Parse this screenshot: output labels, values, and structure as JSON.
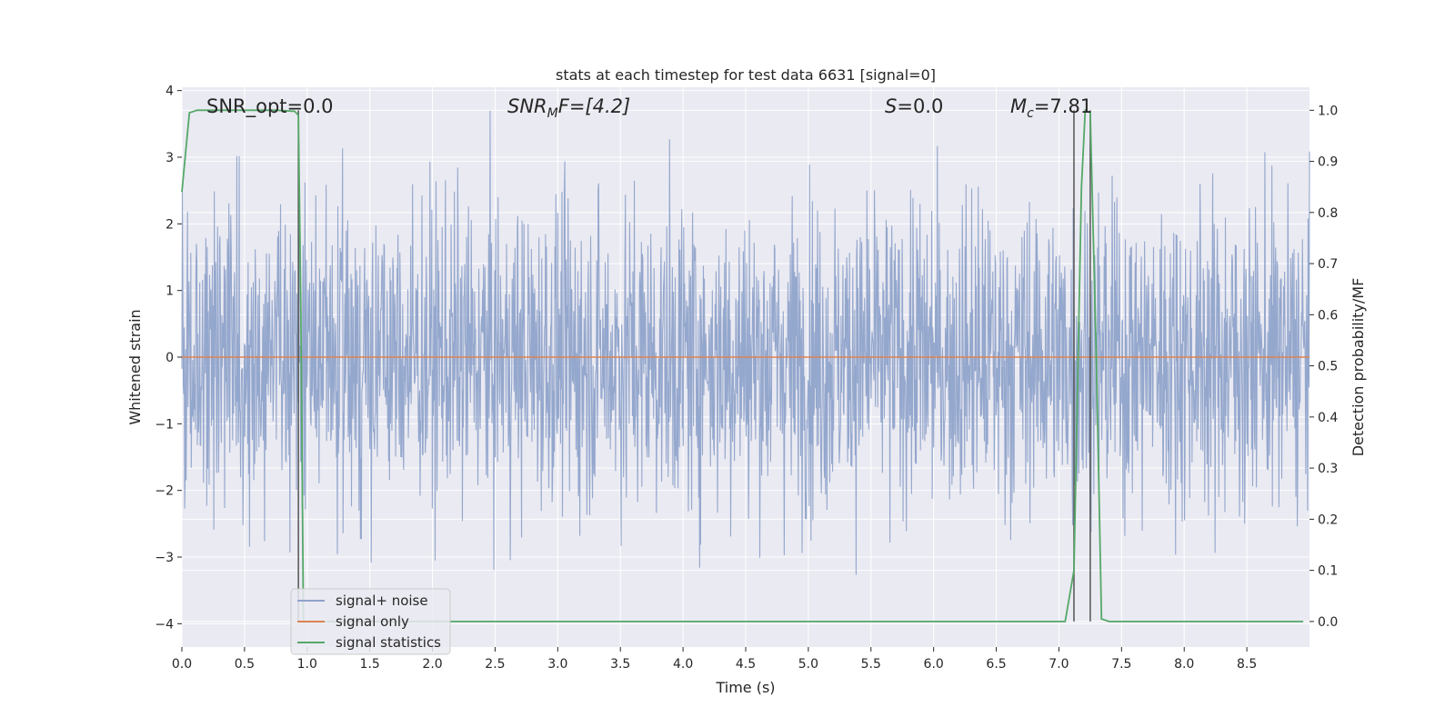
{
  "chart_data": {
    "type": "line",
    "title": "stats at each timestep for test data 6631 [signal=0]",
    "xlabel": "Time (s)",
    "ylabel_left": "Whitened strain",
    "ylabel_right": "Detection probability/MF",
    "xlim": [
      0.0,
      9.0
    ],
    "ylim_left": [
      -4.35,
      4.05
    ],
    "ylim_right": [
      -0.05,
      1.045
    ],
    "x_ticks": [
      0.0,
      0.5,
      1.0,
      1.5,
      2.0,
      2.5,
      3.0,
      3.5,
      4.0,
      4.5,
      5.0,
      5.5,
      6.0,
      6.5,
      7.0,
      7.5,
      8.0,
      8.5
    ],
    "x_tick_labels": [
      "0.0",
      "0.5",
      "1.0",
      "1.5",
      "2.0",
      "2.5",
      "3.0",
      "3.5",
      "4.0",
      "4.5",
      "5.0",
      "5.5",
      "6.0",
      "6.5",
      "7.0",
      "7.5",
      "8.0",
      "8.5"
    ],
    "y_left_ticks": [
      4,
      3,
      2,
      1,
      0,
      -1,
      -2,
      -3,
      -4
    ],
    "y_left_tick_labels": [
      "4",
      "3",
      "2",
      "1",
      "0",
      "−1",
      "−2",
      "−3",
      "−4"
    ],
    "y_right_ticks": [
      1.0,
      0.9,
      0.8,
      0.7,
      0.6,
      0.5,
      0.4,
      0.3,
      0.2,
      0.1,
      0.0
    ],
    "y_right_tick_labels": [
      "1.0",
      "0.9",
      "0.8",
      "0.7",
      "0.6",
      "0.5",
      "0.4",
      "0.3",
      "0.2",
      "0.1",
      "0.0"
    ],
    "annotations": {
      "snr_opt": "SNR_opt=0.0",
      "snr_mf_italic": "SNR",
      "snr_mf_sub": "M",
      "snr_mf_rest": "F=[4.2]",
      "s_italic": "S",
      "s_rest": "=0.0",
      "mc_italic": "M",
      "mc_sub": "c",
      "mc_rest": "=7.81"
    },
    "legend": {
      "placement": "lower-left",
      "entries": [
        "signal+ noise",
        "signal only",
        "signal statistics"
      ]
    },
    "grid": true,
    "colors": {
      "noise": "#8fa3ca",
      "signal": "#dd8452",
      "stats": "#55a868",
      "vlines": "#555555",
      "background": "#eaeaf2",
      "grid": "#ffffff"
    },
    "series": [
      {
        "name": "signal+ noise",
        "axis": "left",
        "kind": "noise",
        "x_range": [
          0.0,
          9.0
        ],
        "sample_rate": 2048,
        "std": 1.0,
        "typical_upper_envelope": 2.5,
        "typical_lower_envelope": -2.5
      },
      {
        "name": "signal only",
        "axis": "left",
        "x": [
          0.0,
          9.0
        ],
        "y": [
          0.0,
          0.0
        ]
      },
      {
        "name": "signal statistics",
        "axis": "right",
        "x": [
          0.0,
          0.06,
          0.12,
          0.25,
          0.5,
          0.75,
          0.9,
          0.93,
          0.95,
          0.97,
          1.0,
          1.5,
          2.0,
          3.0,
          4.0,
          5.0,
          6.0,
          6.5,
          7.0,
          7.05,
          7.12,
          7.18,
          7.21,
          7.25,
          7.3,
          7.34,
          7.4,
          7.6,
          8.0,
          8.5,
          8.95
        ],
        "y": [
          0.84,
          0.995,
          1.0,
          1.0,
          1.0,
          1.0,
          0.998,
          0.99,
          0.6,
          0.0,
          0.0,
          0.0,
          0.0,
          0.0,
          0.0,
          0.0,
          0.0,
          0.0,
          0.0,
          0.0,
          0.1,
          0.85,
          1.0,
          0.995,
          0.5,
          0.005,
          0.0,
          0.0,
          0.0,
          0.0,
          0.0
        ]
      }
    ],
    "vlines": [
      0.93,
      7.12,
      7.25
    ]
  }
}
